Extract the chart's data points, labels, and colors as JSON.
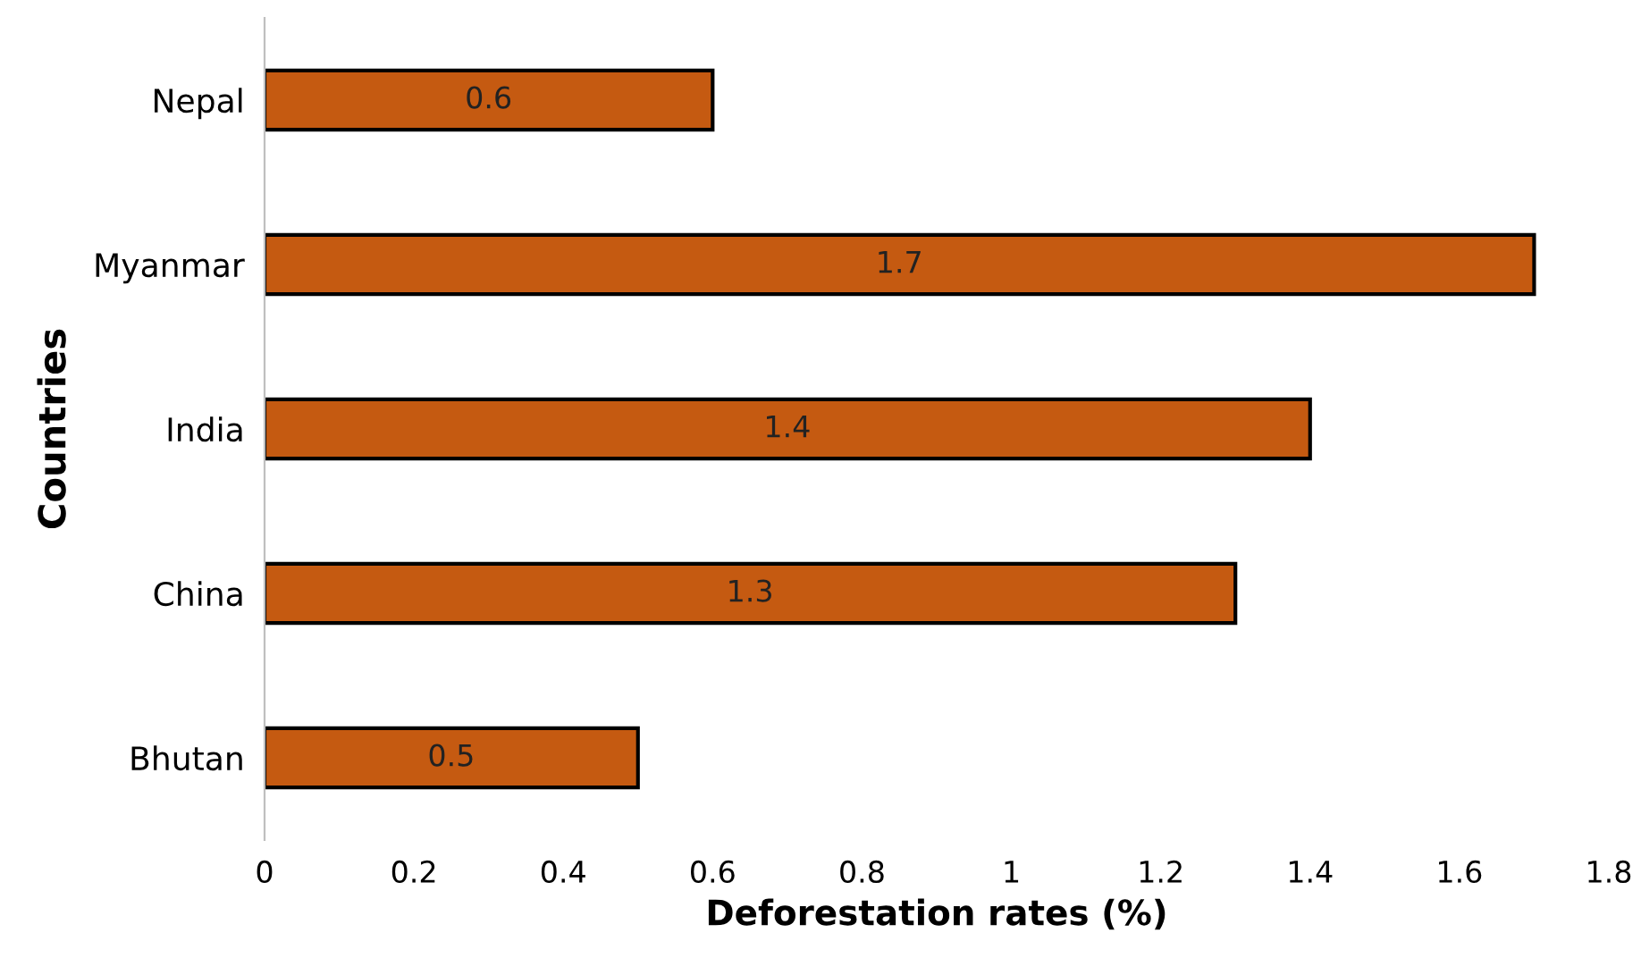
{
  "chart_data": {
    "type": "bar",
    "orientation": "horizontal",
    "xlabel": "Deforestation rates (%)",
    "ylabel": "Countries",
    "categories": [
      "Nepal",
      "Myanmar",
      "India",
      "China",
      "Bhutan"
    ],
    "values": [
      0.6,
      1.7,
      1.4,
      1.3,
      0.5
    ],
    "color": "#c55a11",
    "data_labels": true,
    "xlim": [
      0,
      1.8
    ],
    "xticks": [
      0,
      0.2,
      0.4,
      0.6,
      0.8,
      1,
      1.2,
      1.4,
      1.6,
      1.8
    ],
    "grid": false,
    "legend": false
  }
}
